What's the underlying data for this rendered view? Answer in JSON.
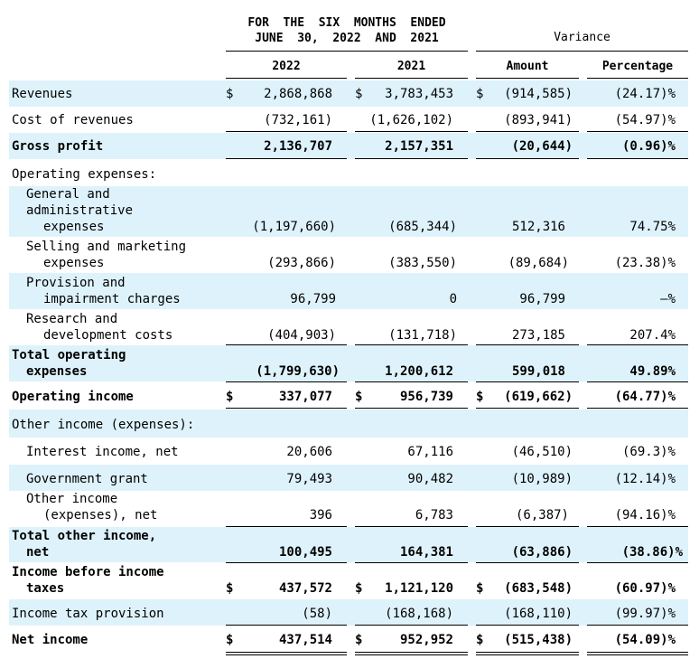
{
  "header": {
    "period_line1": "FOR  THE  SIX  MONTHS  ENDED",
    "period_line2": "JUNE  30,  2022  AND  2021",
    "variance": "Variance",
    "col_2022": "2022",
    "col_2021": "2021",
    "col_amount": "Amount",
    "col_percentage": "Percentage"
  },
  "rows": [
    {
      "label": "Revenues",
      "cur": "$",
      "v2022": "2,868,868",
      "v2021": "3,783,453",
      "amount": "(914,585)",
      "pct": "(24.17)%"
    },
    {
      "label": "Cost of revenues",
      "v2022": "(732,161)",
      "v2021": "(1,626,102)",
      "amount": "(893,941)",
      "pct": "(54.97)%"
    },
    {
      "label": "Gross profit",
      "v2022": "2,136,707",
      "v2021": "2,157,351",
      "amount": "(20,644)",
      "pct": "(0.96)%"
    },
    {
      "label": "Operating expenses:"
    },
    {
      "label_lines": [
        "General and",
        "administrative",
        "expenses"
      ],
      "v2022": "(1,197,660)",
      "v2021": "(685,344)",
      "amount": "512,316",
      "pct": "74.75%"
    },
    {
      "label_lines": [
        "Selling and marketing",
        "expenses"
      ],
      "v2022": "(293,866)",
      "v2021": "(383,550)",
      "amount": "(89,684)",
      "pct": "(23.38)%"
    },
    {
      "label_lines": [
        "Provision and",
        "impairment charges"
      ],
      "v2022": "96,799",
      "v2021": "0",
      "amount": "96,799",
      "pct": "—%"
    },
    {
      "label_lines": [
        "Research and",
        "development costs"
      ],
      "v2022": "(404,903)",
      "v2021": "(131,718)",
      "amount": "273,185",
      "pct": "207.4%"
    },
    {
      "label_lines": [
        "Total operating",
        "expenses"
      ],
      "v2022": "(1,799,630)",
      "v2021": "1,200,612",
      "amount": "599,018",
      "pct": "49.89%"
    },
    {
      "label": "Operating income",
      "cur": "$",
      "v2022": "337,077",
      "v2021": "956,739",
      "amount": "(619,662)",
      "pct": "(64.77)%"
    },
    {
      "label": "Other income (expenses):"
    },
    {
      "label": "Interest income, net",
      "v2022": "20,606",
      "v2021": "67,116",
      "amount": "(46,510)",
      "pct": "(69.3)%"
    },
    {
      "label": "Government grant",
      "v2022": "79,493",
      "v2021": "90,482",
      "amount": "(10,989)",
      "pct": "(12.14)%"
    },
    {
      "label_lines": [
        "Other income",
        "(expenses), net"
      ],
      "v2022": "396",
      "v2021": "6,783",
      "amount": "(6,387)",
      "pct": "(94.16)%"
    },
    {
      "label_lines": [
        "Total other income,",
        "net"
      ],
      "v2022": "100,495",
      "v2021": "164,381",
      "amount": "(63,886)",
      "pct": "(38.86)%"
    },
    {
      "label_lines": [
        "Income before income",
        "taxes"
      ],
      "cur": "$",
      "v2022": "437,572",
      "v2021": "1,121,120",
      "amount": "(683,548)",
      "pct": "(60.97)%"
    },
    {
      "label": "Income tax provision",
      "v2022": "(58)",
      "v2021": "(168,168)",
      "amount": "(168,110)",
      "pct": "(99.97)%"
    },
    {
      "label": "Net income",
      "cur": "$",
      "v2022": "437,514",
      "v2021": "952,952",
      "amount": "(515,438)",
      "pct": "(54.09)%"
    }
  ]
}
